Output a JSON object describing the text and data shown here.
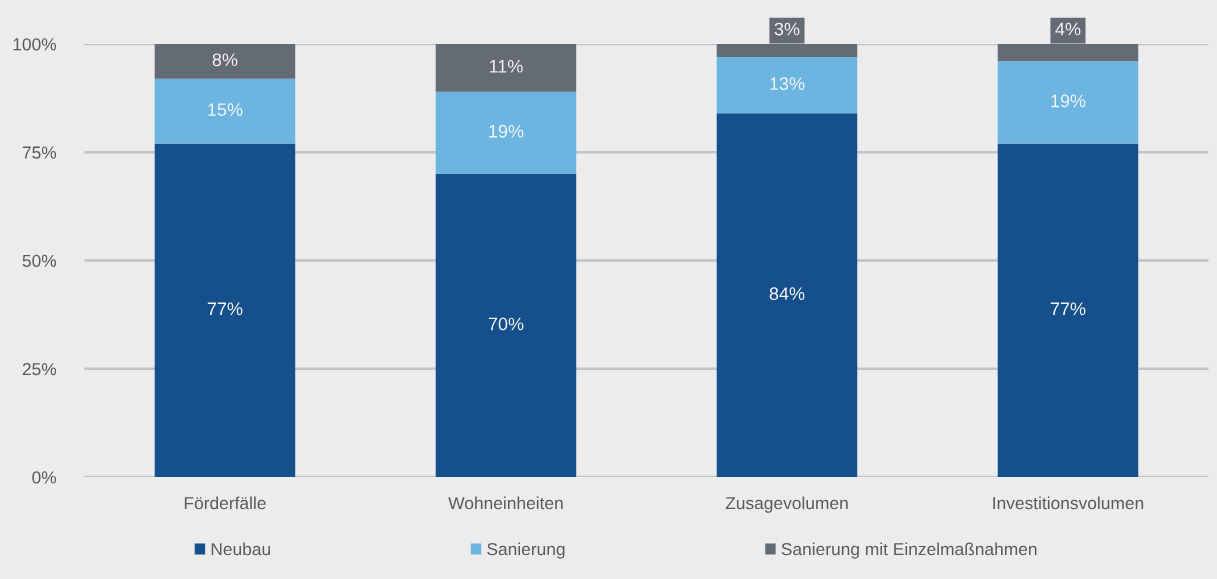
{
  "chart_data": {
    "type": "bar",
    "stacked": true,
    "categories": [
      "Förderfälle",
      "Wohneinheiten",
      "Zusagevolumen",
      "Investitionsvolumen"
    ],
    "series": [
      {
        "name": "Neubau",
        "color": "#15508c",
        "values": [
          77,
          70,
          84,
          77
        ],
        "value_labels": [
          "77%",
          "70%",
          "84%",
          "77%"
        ]
      },
      {
        "name": "Sanierung",
        "color": "#6cb5e1",
        "values": [
          15,
          19,
          13,
          19
        ],
        "value_labels": [
          "15%",
          "19%",
          "13%",
          "19%"
        ]
      },
      {
        "name": "Sanierung mit Einzelmaßnahmen",
        "color": "#646b75",
        "values": [
          8,
          11,
          3,
          4
        ],
        "value_labels": [
          "8%",
          "11%",
          "3%",
          "4%"
        ]
      }
    ],
    "ylim": [
      0,
      100
    ],
    "yticks": [
      {
        "value": 0,
        "label": "0%"
      },
      {
        "value": 25,
        "label": "25%"
      },
      {
        "value": 50,
        "label": "50%"
      },
      {
        "value": 75,
        "label": "75%"
      },
      {
        "value": 100,
        "label": "100%"
      }
    ],
    "grid": "y",
    "legend": "bottom"
  }
}
